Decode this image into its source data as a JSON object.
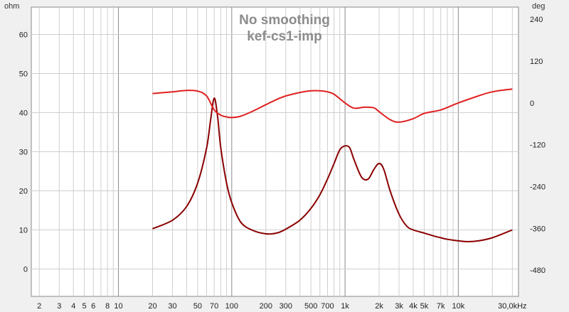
{
  "chart_data": {
    "type": "line",
    "title": "No smoothing",
    "subtitle": "kef-cs1-imp",
    "left_unit": "ohm",
    "right_unit": "deg",
    "x_scale": "log",
    "xlim": [
      1.7,
      34
    ],
    "ylim": [
      -7,
      67
    ],
    "y2lim": [
      -555,
      275
    ],
    "x_ticks": [
      {
        "v": 2,
        "label": "2"
      },
      {
        "v": 3,
        "label": "3"
      },
      {
        "v": 4,
        "label": "4"
      },
      {
        "v": 5,
        "label": "5"
      },
      {
        "v": 6,
        "label": "6"
      },
      {
        "v": 8,
        "label": "8"
      },
      {
        "v": 10,
        "label": "10"
      },
      {
        "v": 20,
        "label": "20"
      },
      {
        "v": 30,
        "label": "30"
      },
      {
        "v": 50,
        "label": "50"
      },
      {
        "v": 70,
        "label": "70"
      },
      {
        "v": 100,
        "label": "100"
      },
      {
        "v": 200,
        "label": "200"
      },
      {
        "v": 300,
        "label": "300"
      },
      {
        "v": 500,
        "label": "500"
      },
      {
        "v": 700,
        "label": "700"
      },
      {
        "v": 1000,
        "label": "1k"
      },
      {
        "v": 2000,
        "label": "2k"
      },
      {
        "v": 3000,
        "label": "3k"
      },
      {
        "v": 4000,
        "label": "4k"
      },
      {
        "v": 5000,
        "label": "5k"
      },
      {
        "v": 7000,
        "label": "7k"
      },
      {
        "v": 10000,
        "label": "10k"
      },
      {
        "v": 30000,
        "label": "30,0kHz"
      }
    ],
    "y_ticks": [
      0,
      10,
      20,
      30,
      40,
      50,
      60
    ],
    "y2_ticks": [
      -480,
      -360,
      -240,
      -120,
      0,
      120,
      240
    ],
    "grid": true,
    "series": [
      {
        "axis": "left",
        "color": "#8b0000",
        "x": [
          20,
          30,
          40,
          50,
          60,
          65,
          70,
          75,
          80,
          90,
          100,
          120,
          150,
          200,
          250,
          300,
          400,
          500,
          600,
          700,
          800,
          900,
          1000,
          1100,
          1200,
          1400,
          1600,
          1800,
          2000,
          2200,
          2500,
          3000,
          3500,
          4000,
          5000,
          6000,
          7000,
          8000,
          10000,
          12000,
          15000,
          20000,
          30000
        ],
        "y": [
          10.3,
          12.5,
          16,
          22,
          31,
          38,
          43.7,
          39,
          31,
          22,
          17,
          12,
          10,
          9,
          9.2,
          10.2,
          12.5,
          15.5,
          19,
          23,
          27,
          30.5,
          31.5,
          31,
          28,
          23.5,
          23,
          25.5,
          27,
          25.5,
          20,
          14,
          11,
          10,
          9.2,
          8.5,
          8,
          7.6,
          7.2,
          7,
          7.2,
          8,
          10
        ]
      },
      {
        "axis": "right",
        "color": "#e02020",
        "x": [
          20,
          30,
          40,
          50,
          60,
          70,
          80,
          90,
          100,
          120,
          150,
          200,
          250,
          300,
          400,
          500,
          600,
          700,
          800,
          1000,
          1200,
          1500,
          1800,
          2000,
          2500,
          3000,
          4000,
          5000,
          7000,
          10000,
          15000,
          20000,
          30000
        ],
        "y": [
          27,
          32,
          36,
          34,
          20,
          -20,
          -35,
          -40,
          -42,
          -38,
          -25,
          -5,
          10,
          20,
          30,
          35,
          35,
          32,
          25,
          0,
          -15,
          -12,
          -14,
          -25,
          -48,
          -55,
          -45,
          -30,
          -20,
          0,
          20,
          32,
          40
        ]
      }
    ]
  }
}
